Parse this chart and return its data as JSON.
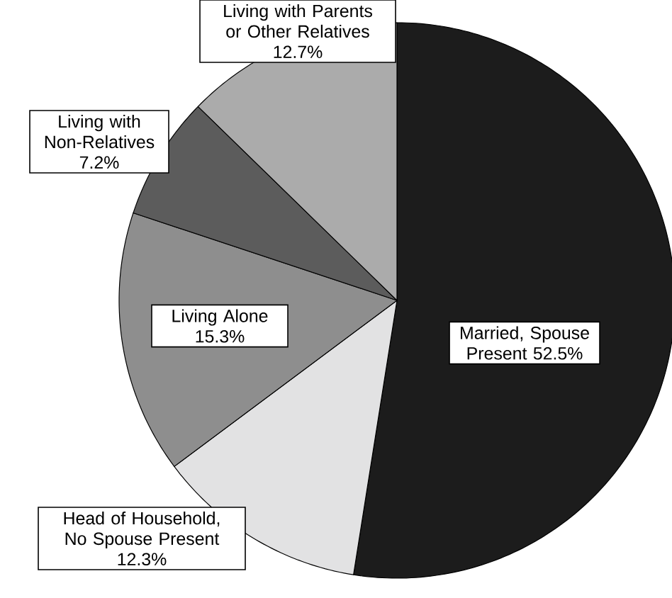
{
  "chart_data": {
    "type": "pie",
    "categories": [
      "Married, Spouse Present",
      "Head of Household, No Spouse Present",
      "Living Alone",
      "Living with Non-Relatives",
      "Living with Parents or Other Relatives"
    ],
    "values": [
      52.5,
      12.3,
      15.3,
      7.2,
      12.7
    ],
    "value_labels": [
      "52.5%",
      "12.3%",
      "15.3%",
      "7.2%",
      "12.7%"
    ],
    "colors": [
      "#1c1c1c",
      "#e2e2e3",
      "#8e8e8e",
      "#5c5c5c",
      "#ababab"
    ]
  }
}
